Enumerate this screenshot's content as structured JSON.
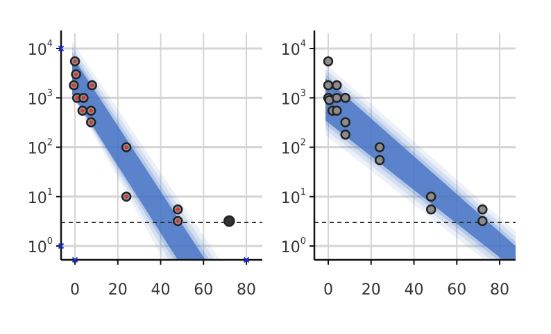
{
  "chart_data": [
    {
      "type": "scatter",
      "panel": "left",
      "y_scale": "log",
      "xlim": [
        -7,
        87
      ],
      "ylim": [
        0.3,
        20000
      ],
      "x_ticks": [
        0,
        20,
        40,
        60,
        80
      ],
      "x_tick_labels": [
        "0",
        "20",
        "40",
        "60",
        "80"
      ],
      "y_ticks": [
        1,
        10,
        100,
        1000,
        10000
      ],
      "y_tick_labels": [
        {
          "base": "10",
          "exp": "0"
        },
        {
          "base": "10",
          "exp": "1"
        },
        {
          "base": "10",
          "exp": "2"
        },
        {
          "base": "10",
          "exp": "3"
        },
        {
          "base": "10",
          "exp": "4"
        }
      ],
      "grid": true,
      "threshold": 3,
      "band": {
        "x": [
          0,
          60
        ],
        "lower": [
          1200,
          0.3
        ],
        "upper": [
          7000,
          0.3
        ],
        "x_upper_end": 63,
        "x_lower_end": 50
      },
      "points": [
        {
          "x": 0,
          "y": 5500,
          "marked": true
        },
        {
          "x": 0.5,
          "y": 3000,
          "marked": true
        },
        {
          "x": -0.5,
          "y": 1800,
          "marked": true
        },
        {
          "x": 1,
          "y": 1000,
          "marked": true
        },
        {
          "x": 4,
          "y": 1000,
          "marked": true
        },
        {
          "x": 3.5,
          "y": 550,
          "marked": true
        },
        {
          "x": 8,
          "y": 1800,
          "marked": true
        },
        {
          "x": 7.5,
          "y": 550,
          "marked": true
        },
        {
          "x": 7.5,
          "y": 320,
          "marked": true
        },
        {
          "x": 24,
          "y": 100,
          "marked": true
        },
        {
          "x": 24,
          "y": 10,
          "marked": true
        },
        {
          "x": 48,
          "y": 5.5,
          "marked": true
        },
        {
          "x": 48,
          "y": 3.2,
          "marked": true
        },
        {
          "x": 72,
          "y": 3.2,
          "marked": false
        }
      ],
      "markers": [
        {
          "x": -7,
          "y": 10000
        },
        {
          "x": -7,
          "y": 1
        },
        {
          "x": 0,
          "y": 0.3
        },
        {
          "x": 80,
          "y": 0.3
        }
      ]
    },
    {
      "type": "scatter",
      "panel": "right",
      "y_scale": "log",
      "xlim": [
        -7,
        87
      ],
      "ylim": [
        0.3,
        20000
      ],
      "x_ticks": [
        0,
        20,
        40,
        60,
        80
      ],
      "x_tick_labels": [
        "0",
        "20",
        "40",
        "60",
        "80"
      ],
      "y_ticks": [
        1,
        10,
        100,
        1000,
        10000
      ],
      "y_tick_labels": [
        {
          "base": "10",
          "exp": "0"
        },
        {
          "base": "10",
          "exp": "1"
        },
        {
          "base": "10",
          "exp": "2"
        },
        {
          "base": "10",
          "exp": "3"
        },
        {
          "base": "10",
          "exp": "4"
        }
      ],
      "grid": true,
      "threshold": 3,
      "band": {
        "x": [
          0,
          87
        ],
        "lower": [
          350,
          0.3
        ],
        "upper": [
          2500,
          0.9
        ]
      },
      "points": [
        {
          "x": 0,
          "y": 5500
        },
        {
          "x": 0,
          "y": 1800
        },
        {
          "x": 0,
          "y": 1000
        },
        {
          "x": 0.5,
          "y": 900
        },
        {
          "x": 4,
          "y": 1800
        },
        {
          "x": 4,
          "y": 1000
        },
        {
          "x": 2,
          "y": 550
        },
        {
          "x": 4,
          "y": 550
        },
        {
          "x": 8,
          "y": 1000
        },
        {
          "x": 8,
          "y": 320
        },
        {
          "x": 8,
          "y": 180
        },
        {
          "x": 24,
          "y": 100
        },
        {
          "x": 24,
          "y": 55
        },
        {
          "x": 48,
          "y": 10
        },
        {
          "x": 48,
          "y": 5.5
        },
        {
          "x": 72,
          "y": 5.5
        },
        {
          "x": 72,
          "y": 3.2
        }
      ]
    }
  ],
  "colors": {
    "band": "#4472c4",
    "grid": "#d4d4d4",
    "axis": "#111111",
    "point_fill": "#8c8c8c",
    "point_stroke": "#222222",
    "point_mark": "#e03030",
    "marker": "#1a2ee6",
    "threshold": "#333333"
  }
}
